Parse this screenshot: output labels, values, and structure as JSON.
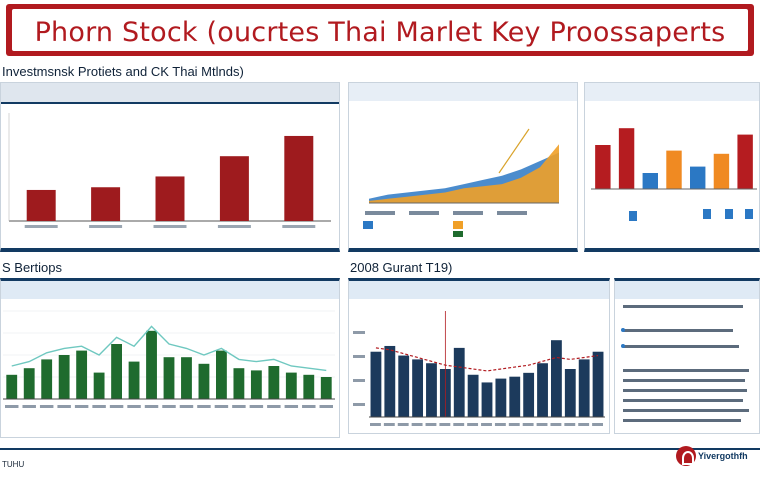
{
  "banner": {
    "title": "Phorn Stock (oucrtes Thai Marlet Key Proossaperts"
  },
  "sections": {
    "top_heading": "Investmsnsk Protiets and CK Thai Mtlnds)",
    "mid_left_heading": "S Bertiops",
    "mid_center_heading": "2008 Gurant T19)"
  },
  "footer": {
    "left_label": "TUHU",
    "brand": "Yivergothfh"
  },
  "chart_data": [
    {
      "type": "bar",
      "categories": [
        "",
        "",
        "",
        "",
        ""
      ],
      "values": [
        23,
        25,
        33,
        48,
        63
      ],
      "ylim": [
        0,
        80
      ],
      "colors": [
        "#9e1b1e",
        "#9e1b1e",
        "#9e1b1e",
        "#9e1b1e",
        "#9e1b1e"
      ]
    },
    {
      "type": "area",
      "x": [
        0,
        1,
        2,
        3,
        4,
        5,
        6,
        7,
        8,
        9,
        10
      ],
      "series": [
        {
          "values": [
            2,
            4,
            5,
            6,
            7,
            9,
            11,
            13,
            16,
            20,
            24
          ],
          "color": "#2b78c4"
        },
        {
          "values": [
            1,
            2,
            3,
            4,
            5,
            7,
            8,
            9,
            12,
            17,
            28
          ],
          "color": "#f0a028"
        }
      ],
      "ylim": [
        0,
        40
      ]
    },
    {
      "type": "bar",
      "categories": [
        "",
        "",
        "",
        "",
        "",
        "",
        ""
      ],
      "values": [
        55,
        76,
        20,
        48,
        28,
        44,
        68
      ],
      "colors": [
        "#b51c20",
        "#b51c20",
        "#2b78c4",
        "#f08a22",
        "#2b78c4",
        "#f08a22",
        "#b51c20"
      ],
      "ylim": [
        0,
        100
      ]
    },
    {
      "type": "bar",
      "categories": [
        "",
        "",
        "",
        "",
        "",
        "",
        "",
        "",
        "",
        "",
        "",
        "",
        "",
        "",
        "",
        "",
        "",
        "",
        ""
      ],
      "values": [
        22,
        28,
        36,
        40,
        44,
        24,
        50,
        34,
        62,
        38,
        38,
        32,
        44,
        28,
        26,
        30,
        24,
        22,
        20
      ],
      "line": [
        30,
        34,
        42,
        46,
        48,
        40,
        56,
        48,
        66,
        50,
        46,
        40,
        46,
        36,
        34,
        36,
        30,
        28,
        26
      ],
      "ylim": [
        0,
        80
      ],
      "color": "#1f6b2e",
      "line_color": "#6fc8c0"
    },
    {
      "type": "bar",
      "categories": [
        "",
        "",
        "",
        "",
        "",
        "",
        "",
        "",
        "",
        "",
        "",
        "",
        "",
        "",
        "",
        "",
        ""
      ],
      "values": [
        68,
        74,
        64,
        60,
        56,
        50,
        72,
        44,
        36,
        40,
        42,
        46,
        56,
        80,
        50,
        60,
        68
      ],
      "line": [
        72,
        70,
        66,
        62,
        58,
        54,
        52,
        50,
        48,
        50,
        52,
        54,
        58,
        62,
        60,
        62,
        64
      ],
      "ylim": [
        0,
        100
      ],
      "color": "#1c3a5c",
      "line_color": "#b11a1f"
    }
  ]
}
